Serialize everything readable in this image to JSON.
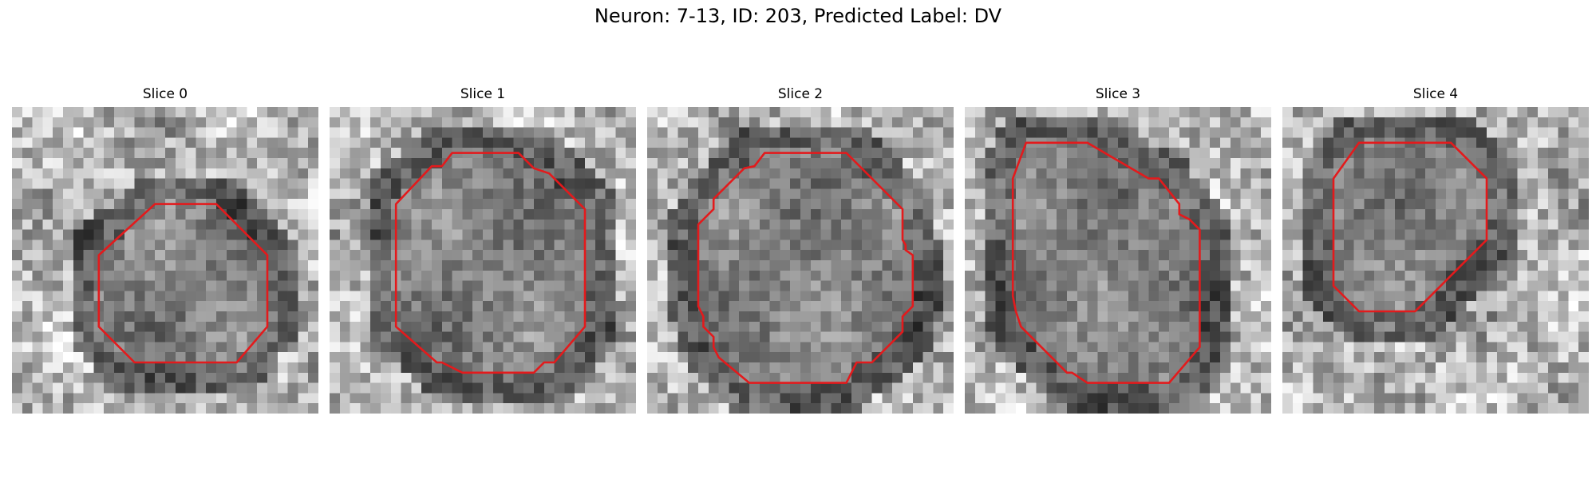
{
  "figure": {
    "title": "Neuron: 7-13, ID: 203, Predicted Label: DV",
    "contour_color": "#e31a1c",
    "colormap": "gray",
    "grid_size": 30
  },
  "panels": [
    {
      "title": "Slice 0",
      "contour": [
        [
          14,
          9.5
        ],
        [
          20,
          9.5
        ],
        [
          25,
          14.5
        ],
        [
          25,
          21.5
        ],
        [
          22,
          25
        ],
        [
          12,
          25
        ],
        [
          8.5,
          21.5
        ],
        [
          8.5,
          14.5
        ]
      ]
    },
    {
      "title": "Slice 1",
      "contour": [
        [
          12,
          4.5
        ],
        [
          18.5,
          4.5
        ],
        [
          20,
          6
        ],
        [
          21.5,
          6.5
        ],
        [
          25,
          10
        ],
        [
          25,
          21.5
        ],
        [
          22,
          25
        ],
        [
          21,
          25
        ],
        [
          20,
          26
        ],
        [
          13,
          26
        ],
        [
          11,
          25
        ],
        [
          10.5,
          25
        ],
        [
          6.5,
          21.5
        ],
        [
          6.5,
          9.5
        ],
        [
          10,
          5.8
        ],
        [
          11,
          5.8
        ]
      ]
    },
    {
      "title": "Slice 2",
      "contour": [
        [
          11.5,
          4.5
        ],
        [
          19.5,
          4.5
        ],
        [
          25,
          10
        ],
        [
          25,
          13
        ],
        [
          25.3,
          13.5
        ],
        [
          25.3,
          14
        ],
        [
          26,
          14.5
        ],
        [
          26,
          19.5
        ],
        [
          25,
          20.5
        ],
        [
          25,
          22
        ],
        [
          24,
          23
        ],
        [
          22,
          25
        ],
        [
          20.5,
          25
        ],
        [
          20,
          26
        ],
        [
          19.5,
          27
        ],
        [
          10,
          27
        ],
        [
          7,
          24.5
        ],
        [
          6.5,
          23.5
        ],
        [
          6.5,
          22.5
        ],
        [
          5.5,
          21.5
        ],
        [
          5.5,
          20.5
        ],
        [
          5,
          19.5
        ],
        [
          5,
          11.5
        ],
        [
          6.5,
          10
        ],
        [
          6.5,
          9
        ],
        [
          9.5,
          6
        ],
        [
          10.5,
          5.8
        ]
      ]
    },
    {
      "title": "Slice 3",
      "contour": [
        [
          6,
          3.5
        ],
        [
          12,
          3.5
        ],
        [
          18,
          7
        ],
        [
          19,
          7
        ],
        [
          21,
          9.5
        ],
        [
          21,
          10.5
        ],
        [
          22,
          11
        ],
        [
          23,
          12
        ],
        [
          23,
          23.5
        ],
        [
          20,
          27
        ],
        [
          12,
          27
        ],
        [
          10.5,
          26
        ],
        [
          10,
          26
        ],
        [
          8,
          24
        ],
        [
          5.5,
          21.5
        ],
        [
          5,
          20
        ],
        [
          4.7,
          18.5
        ],
        [
          4.7,
          7
        ]
      ]
    },
    {
      "title": "Slice 4",
      "contour": [
        [
          7.5,
          3.5
        ],
        [
          16.5,
          3.5
        ],
        [
          20,
          7
        ],
        [
          20,
          13
        ],
        [
          13,
          20
        ],
        [
          7.5,
          20
        ],
        [
          5,
          17.5
        ],
        [
          5,
          7
        ]
      ]
    }
  ]
}
